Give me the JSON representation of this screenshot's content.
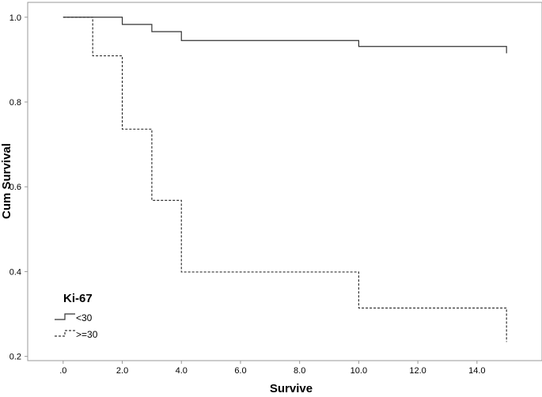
{
  "chart_data": {
    "type": "line",
    "xlabel": "Survive",
    "ylabel": "Cum Survival",
    "xlim": [
      -1.2,
      16.2
    ],
    "ylim": [
      0.19,
      1.035
    ],
    "x_ticks": [
      0,
      2,
      4,
      6,
      8,
      10,
      12,
      14
    ],
    "x_tick_labels": [
      ".0",
      "2.0",
      "4.0",
      "6.0",
      "8.0",
      "10.0",
      "12.0",
      "14.0"
    ],
    "y_ticks": [
      0.2,
      0.4,
      0.6,
      0.8,
      1.0
    ],
    "y_tick_labels": [
      "0.2",
      "0.4",
      "0.6",
      "0.8",
      "1.0"
    ],
    "grid": false,
    "legend": {
      "title": "Ki-67",
      "placement": "bottom-left"
    },
    "series": [
      {
        "name": "<30",
        "line_style": "solid",
        "color": "#333333",
        "steps": [
          {
            "x": 0,
            "y": 1.0
          },
          {
            "x": 2,
            "y": 0.983
          },
          {
            "x": 3,
            "y": 0.966
          },
          {
            "x": 4,
            "y": 0.945
          },
          {
            "x": 10,
            "y": 0.931
          },
          {
            "x": 15,
            "y": 0.931
          }
        ],
        "end_drop_to": 0.915
      },
      {
        "name": ">=30",
        "line_style": "dashed",
        "color": "#333333",
        "steps": [
          {
            "x": 0,
            "y": 1.0
          },
          {
            "x": 1,
            "y": 0.909
          },
          {
            "x": 2,
            "y": 0.736
          },
          {
            "x": 3,
            "y": 0.568
          },
          {
            "x": 4,
            "y": 0.399
          },
          {
            "x": 10,
            "y": 0.314
          },
          {
            "x": 15,
            "y": 0.314
          }
        ],
        "end_drop_to": 0.234
      }
    ]
  }
}
